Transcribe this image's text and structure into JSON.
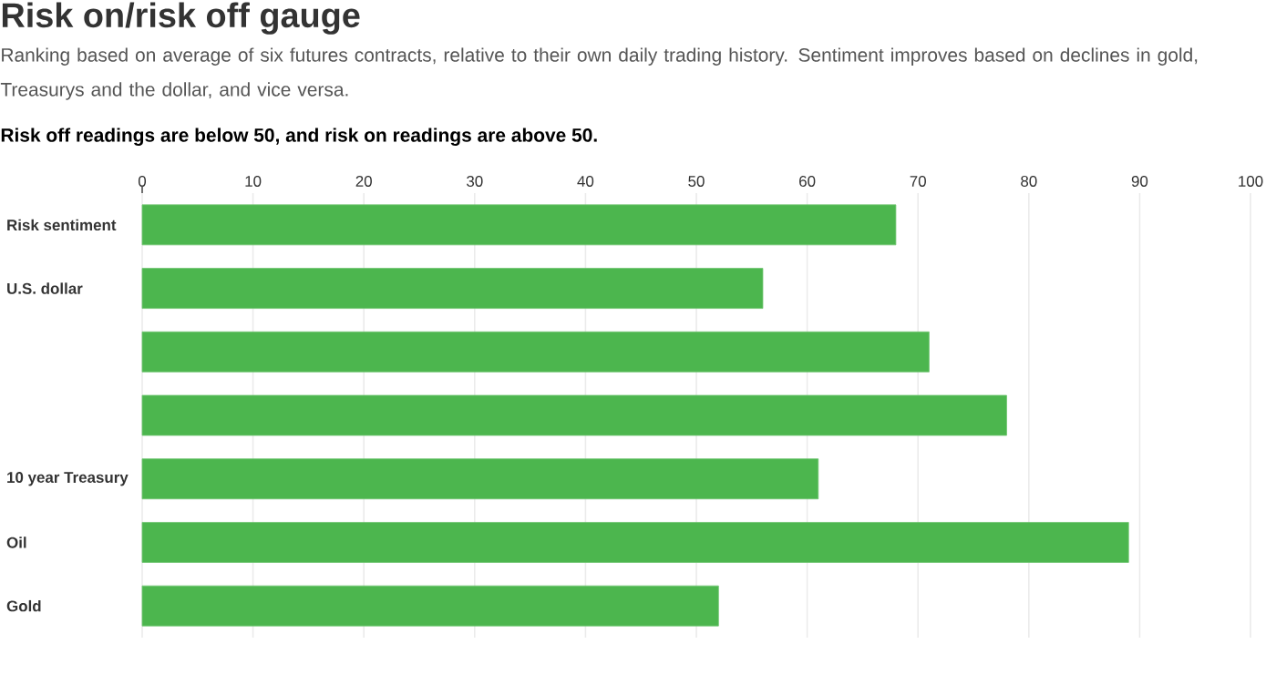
{
  "chart_data": {
    "type": "bar",
    "orientation": "horizontal",
    "title": "Risk on/risk off gauge",
    "subtitle": "Ranking based on average of six futures contracts, relative to their own daily trading history. Sentiment improves based on declines in gold, Treasurys and the dollar, and vice versa.",
    "annotations": [
      "**Risk off readings are below 50, and risk on readings are above 50.**"
    ],
    "categories": [
      "Risk sentiment",
      "U.S. dollar",
      null,
      null,
      "10 year Treasury",
      "Oil",
      "Gold"
    ],
    "values": [
      68,
      56,
      71,
      78,
      61,
      89,
      52
    ],
    "color": "#4cb64e",
    "xlim": [
      0,
      100
    ],
    "xticks": [
      0,
      10,
      20,
      30,
      40,
      50,
      60,
      70,
      80,
      90,
      100
    ],
    "grid": "x"
  }
}
